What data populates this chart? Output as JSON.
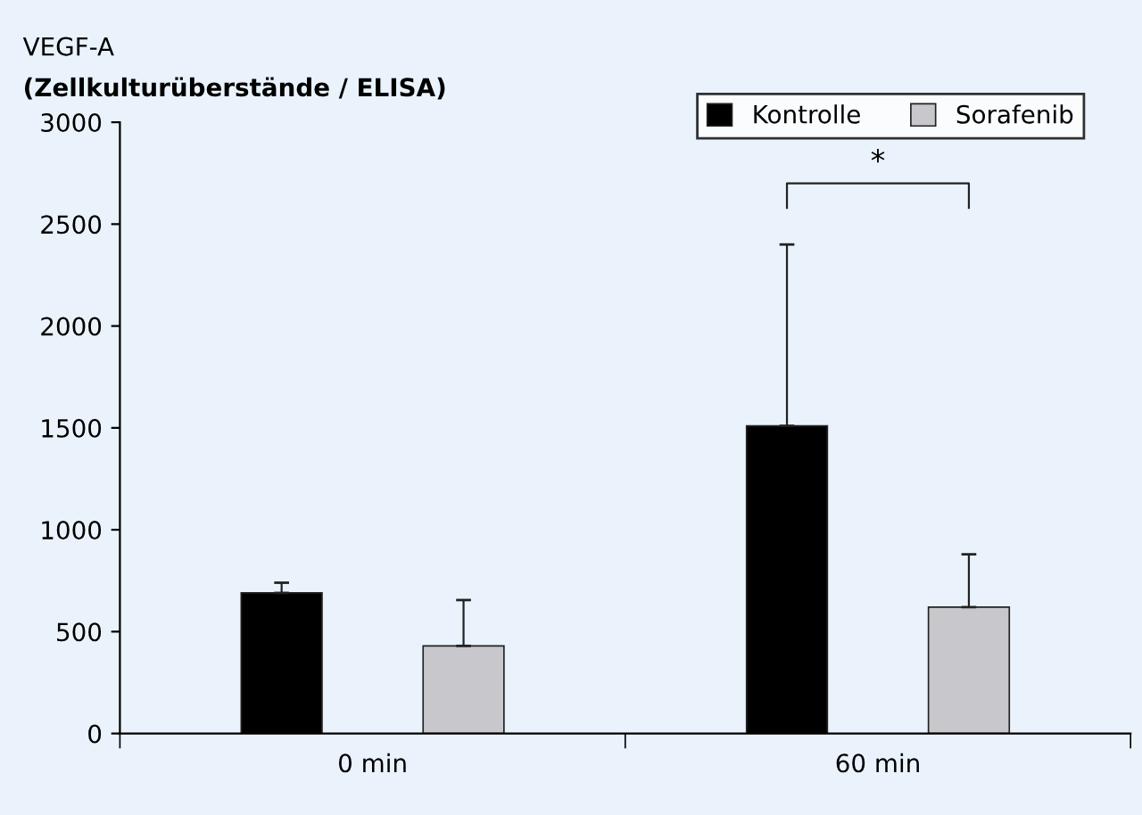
{
  "chart_data": {
    "type": "bar",
    "title": "VEGF-A",
    "subtitle": "(Zellkulturüberstände / ELISA)",
    "categories": [
      "0 min",
      "60 min"
    ],
    "series": [
      {
        "name": "Kontrolle",
        "color": "#000000",
        "values": [
          690,
          1510
        ],
        "errors": [
          [
            690,
            740
          ],
          [
            1510,
            2400
          ]
        ]
      },
      {
        "name": "Sorafenib",
        "color": "#c8c8cc",
        "values": [
          430,
          620
        ],
        "errors": [
          [
            430,
            655
          ],
          [
            620,
            880
          ]
        ]
      }
    ],
    "ylim": [
      0,
      3000
    ],
    "yticks": [
      0,
      500,
      1000,
      1500,
      2000,
      2500,
      3000
    ],
    "grid": false,
    "legend": "top right",
    "annotations": [
      "*"
    ]
  }
}
